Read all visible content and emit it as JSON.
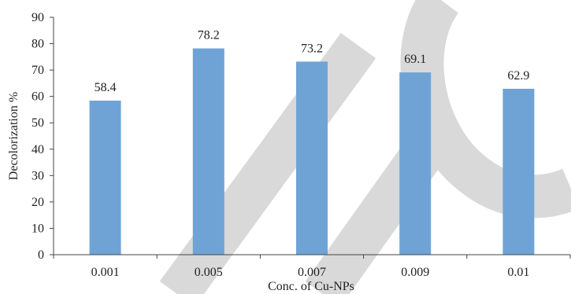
{
  "chart_data": {
    "type": "bar",
    "categories": [
      "0.001",
      "0.005",
      "0.007",
      "0.009",
      "0.01"
    ],
    "values": [
      58.4,
      78.2,
      73.2,
      69.1,
      62.9
    ],
    "data_labels": [
      "58.4",
      "78.2",
      "73.2",
      "69.1",
      "62.9"
    ],
    "xlabel": "Conc. of Cu-NPs",
    "ylabel": "Decolorization %",
    "ylim": [
      0,
      90
    ],
    "yticks": [
      0,
      10,
      20,
      30,
      40,
      50,
      60,
      70,
      80,
      90
    ],
    "grid": false,
    "legend": "none",
    "bar_color": "#6fa3d6",
    "watermark_color": "#d9d9d9"
  }
}
